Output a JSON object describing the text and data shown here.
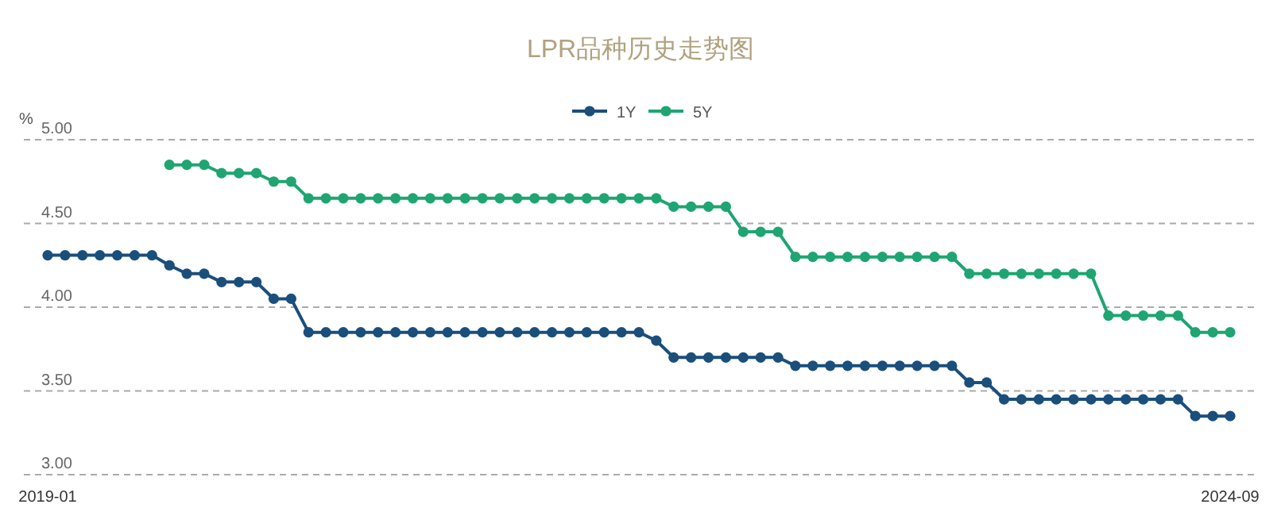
{
  "chart_data": {
    "type": "line",
    "title": "LPR品种历史走势图",
    "ylabel": "%",
    "categories": [
      "2019-01",
      null,
      null,
      null,
      null,
      null,
      null,
      null,
      null,
      null,
      null,
      null,
      null,
      null,
      null,
      null,
      null,
      null,
      null,
      null,
      null,
      null,
      null,
      null,
      null,
      null,
      null,
      null,
      null,
      null,
      null,
      null,
      null,
      null,
      null,
      null,
      null,
      null,
      null,
      null,
      null,
      null,
      null,
      null,
      null,
      null,
      null,
      null,
      null,
      null,
      null,
      null,
      null,
      null,
      null,
      null,
      null,
      null,
      null,
      null,
      null,
      null,
      null,
      null,
      null,
      null,
      null,
      null,
      "2024-09"
    ],
    "series": [
      {
        "name": "1Y",
        "color": "#1a4f7c",
        "values": [
          4.31,
          4.31,
          4.31,
          4.31,
          4.31,
          4.31,
          4.31,
          4.25,
          4.2,
          4.2,
          4.15,
          4.15,
          4.15,
          4.05,
          4.05,
          3.85,
          3.85,
          3.85,
          3.85,
          3.85,
          3.85,
          3.85,
          3.85,
          3.85,
          3.85,
          3.85,
          3.85,
          3.85,
          3.85,
          3.85,
          3.85,
          3.85,
          3.85,
          3.85,
          3.85,
          3.8,
          3.7,
          3.7,
          3.7,
          3.7,
          3.7,
          3.7,
          3.7,
          3.65,
          3.65,
          3.65,
          3.65,
          3.65,
          3.65,
          3.65,
          3.65,
          3.65,
          3.65,
          3.55,
          3.55,
          3.45,
          3.45,
          3.45,
          3.45,
          3.45,
          3.45,
          3.45,
          3.45,
          3.45,
          3.45,
          3.45,
          3.35,
          3.35,
          3.35
        ]
      },
      {
        "name": "5Y",
        "color": "#1fa572",
        "values": [
          null,
          null,
          null,
          null,
          null,
          null,
          null,
          4.85,
          4.85,
          4.85,
          4.8,
          4.8,
          4.8,
          4.75,
          4.75,
          4.65,
          4.65,
          4.65,
          4.65,
          4.65,
          4.65,
          4.65,
          4.65,
          4.65,
          4.65,
          4.65,
          4.65,
          4.65,
          4.65,
          4.65,
          4.65,
          4.65,
          4.65,
          4.65,
          4.65,
          4.65,
          4.6,
          4.6,
          4.6,
          4.6,
          4.45,
          4.45,
          4.45,
          4.3,
          4.3,
          4.3,
          4.3,
          4.3,
          4.3,
          4.3,
          4.3,
          4.3,
          4.3,
          4.2,
          4.2,
          4.2,
          4.2,
          4.2,
          4.2,
          4.2,
          4.2,
          3.95,
          3.95,
          3.95,
          3.95,
          3.95,
          3.85,
          3.85,
          3.85
        ]
      }
    ],
    "ylim": [
      3,
      5
    ],
    "yticks": [
      {
        "value": 3,
        "label": "3.00"
      },
      {
        "value": 3.5,
        "label": "3.50"
      },
      {
        "value": 4,
        "label": "4.00"
      },
      {
        "value": 4.5,
        "label": "4.50"
      },
      {
        "value": 5,
        "label": "5.00"
      }
    ],
    "grid": "y",
    "legend": "top",
    "marker": "circle",
    "line_style": "solid"
  }
}
